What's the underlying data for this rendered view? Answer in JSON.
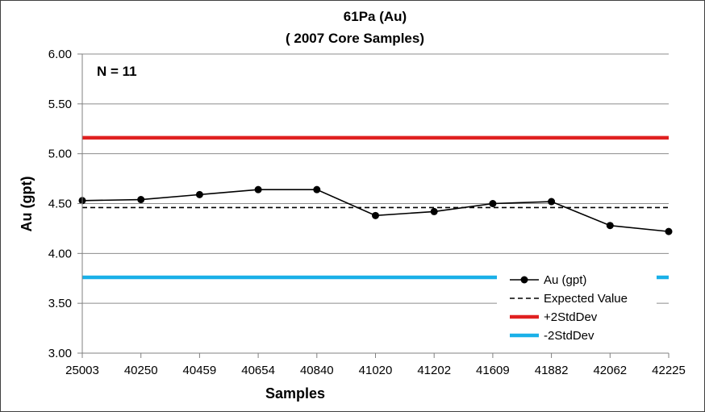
{
  "chart_data": {
    "type": "line",
    "title": "61Pa (Au)",
    "subtitle": "( 2007 Core Samples)",
    "annotation": "N = 11",
    "xlabel": "Samples",
    "ylabel": "Au (gpt)",
    "ylim": [
      3.0,
      6.0
    ],
    "yticks": [
      "3.00",
      "3.50",
      "4.00",
      "4.50",
      "5.00",
      "5.50",
      "6.00"
    ],
    "categories": [
      "25003",
      "40250",
      "40459",
      "40654",
      "40840",
      "41020",
      "41202",
      "41609",
      "41882",
      "42062",
      "42225"
    ],
    "grid": "horizontal",
    "legend_position": "bottom-right",
    "series": [
      {
        "name": "Au (gpt)",
        "style": "line-marker",
        "color": "#000000",
        "values": [
          4.53,
          4.54,
          4.59,
          4.64,
          4.64,
          4.38,
          4.42,
          4.5,
          4.52,
          4.28,
          4.22
        ]
      },
      {
        "name": "Expected Value",
        "style": "dashed",
        "color": "#000000",
        "value": 4.46
      },
      {
        "name": "+2StdDev",
        "style": "solid",
        "color": "#e02020",
        "value": 5.16
      },
      {
        "name": "-2StdDev",
        "style": "solid",
        "color": "#1ab0e8",
        "value": 3.76
      }
    ]
  }
}
